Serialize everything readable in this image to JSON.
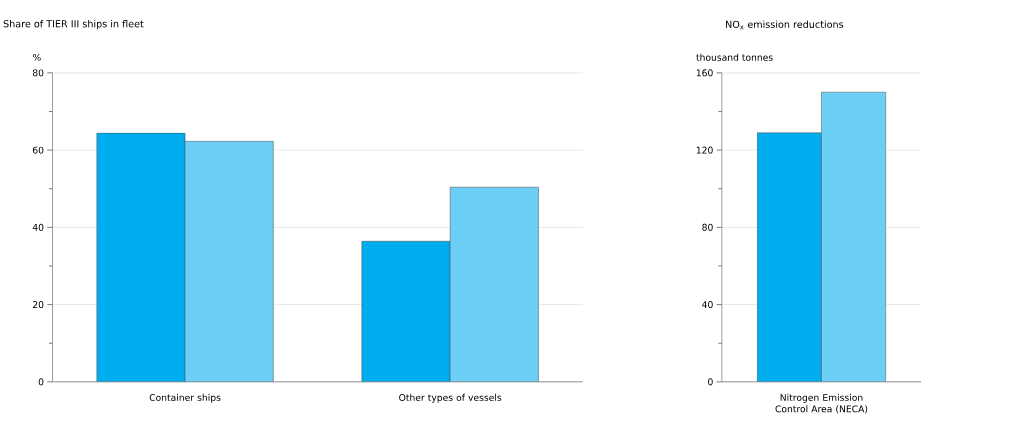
{
  "chart_data": [
    {
      "type": "bar",
      "title": "Share of TIER III ships in fleet",
      "ylabel": "%",
      "categories": [
        "Container ships",
        "Other types of vessels"
      ],
      "series": [
        {
          "color": "#00adef",
          "values": [
            64.4,
            36.4
          ]
        },
        {
          "color": "#6dcff6",
          "values": [
            62.3,
            50.4
          ]
        }
      ],
      "ylim": [
        0,
        80
      ],
      "yticks": [
        0,
        {
          "value": 10,
          "label": null
        },
        20,
        {
          "value": 30,
          "label": null
        },
        40,
        {
          "value": 50,
          "label": null
        },
        60,
        {
          "value": 70,
          "label": null
        },
        80
      ],
      "grid": "y"
    },
    {
      "type": "bar",
      "title": "NO$_{x}$ emission reductions",
      "ylabel": "thousand tonnes",
      "categories": [
        "Nitrogen Emission Control Area (NECA)"
      ],
      "series": [
        {
          "color": "#00adef",
          "values": [
            129
          ]
        },
        {
          "color": "#6dcff6",
          "values": [
            150
          ]
        }
      ],
      "ylim": [
        0,
        160
      ],
      "yticks": [
        0,
        {
          "value": 20,
          "label": null
        },
        40,
        {
          "value": 60,
          "label": null
        },
        80,
        {
          "value": 100,
          "label": null
        },
        120,
        {
          "value": 140,
          "label": null
        },
        160
      ],
      "grid": "y"
    }
  ]
}
